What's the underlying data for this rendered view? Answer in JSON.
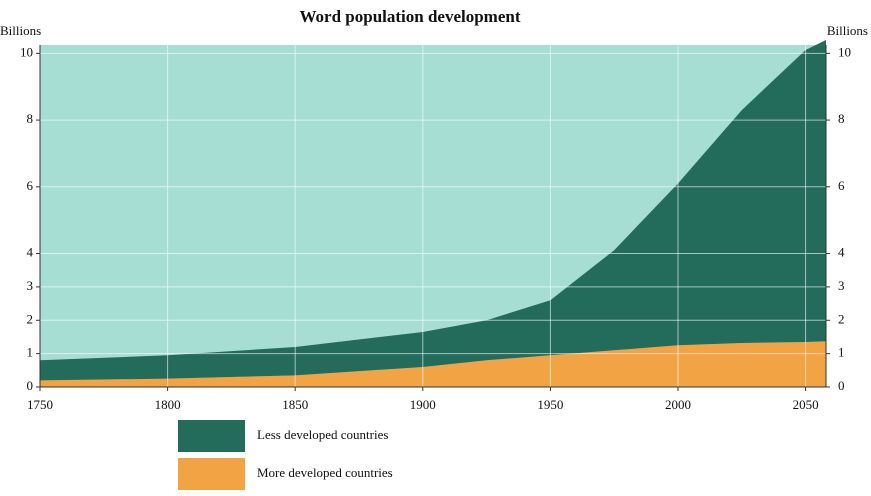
{
  "chart_data": {
    "type": "stacked_area",
    "title": "Word population development",
    "y_label": "Billions",
    "y2_label": "Billions",
    "x": [
      1750,
      1800,
      1850,
      1900,
      1925,
      1950,
      1975,
      2000,
      2025,
      2050,
      2058
    ],
    "series": [
      {
        "name": "More developed countries",
        "color": "#f2a444",
        "values": [
          0.2,
          0.25,
          0.35,
          0.6,
          0.8,
          0.95,
          1.1,
          1.25,
          1.32,
          1.35,
          1.37
        ]
      },
      {
        "name": "Less developed countries",
        "color": "#236b5b",
        "values": [
          0.6,
          0.7,
          0.85,
          1.05,
          1.2,
          1.65,
          3.0,
          4.85,
          6.98,
          8.75,
          9.03
        ]
      }
    ],
    "background": "#a6ded3",
    "xlim": [
      1750,
      2058
    ],
    "xticks": [
      1750,
      1800,
      1850,
      1900,
      1950,
      2000,
      2050
    ],
    "ylim": [
      0,
      10.25
    ],
    "yticks": [
      0,
      1,
      2,
      3,
      4,
      6,
      8,
      10
    ],
    "y2lim": [
      0,
      10.25
    ],
    "y2ticks": [
      0,
      1,
      2,
      3,
      4,
      6,
      8,
      10
    ],
    "grid": true
  }
}
